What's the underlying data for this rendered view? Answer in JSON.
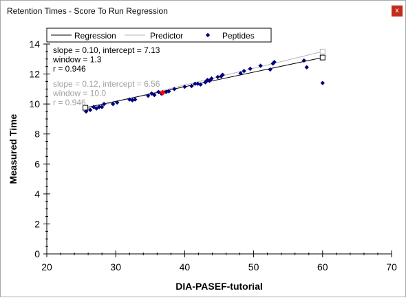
{
  "window": {
    "title": "Retention Times - Score To Run Regression",
    "close_glyph": "x"
  },
  "legend": {
    "items": [
      {
        "label": "Regression",
        "color": "#000000",
        "marker": "line"
      },
      {
        "label": "Predictor",
        "color": "#b4b4b4",
        "marker": "line"
      },
      {
        "label": "Peptides",
        "color": "#000080",
        "marker": "diamond"
      }
    ]
  },
  "stats": {
    "regression": [
      "slope = 0.10, intercept = 7.13",
      "window = 1.3",
      "r = 0.946"
    ],
    "predictor": [
      "slope = 0.12, intercept = 6.56",
      "window = 10.0",
      "r = 0.946"
    ]
  },
  "colors": {
    "regression": "#000000",
    "predictor": "#b4b4b4",
    "peptide": "#000080",
    "selected_peptide": "#ff0000",
    "stats_regression": "#000000",
    "stats_predictor": "#a0a0a0"
  },
  "chart_data": {
    "type": "scatter",
    "xlabel": "DIA-PASEF-tutorial",
    "ylabel": "Measured Time",
    "xlim": [
      20,
      70
    ],
    "ylim": [
      0,
      14
    ],
    "x_ticks": [
      20,
      30,
      40,
      50,
      60,
      70
    ],
    "y_ticks": [
      0,
      2,
      4,
      6,
      8,
      10,
      12,
      14
    ],
    "x_minor_step": 2,
    "y_minor_step": 0.5,
    "grid": false,
    "legend_position": "top",
    "regression_line": {
      "x": [
        25.6,
        60.0
      ],
      "y": [
        9.75,
        13.1
      ]
    },
    "predictor_line": {
      "x": [
        25.6,
        60.0
      ],
      "y": [
        9.65,
        13.5
      ]
    },
    "series": [
      {
        "name": "Peptides",
        "x": [
          25.7,
          26.3,
          26.8,
          27.2,
          27.6,
          28.0,
          28.3,
          29.6,
          30.2,
          32.0,
          32.4,
          32.8,
          34.7,
          35.2,
          35.6,
          36.2,
          36.6,
          37.3,
          37.7,
          38.5,
          40.0,
          41.0,
          41.5,
          41.9,
          42.3,
          43.0,
          43.3,
          43.6,
          43.9,
          44.8,
          45.3,
          45.5,
          48.1,
          48.6,
          49.5,
          51.0,
          52.4,
          52.8,
          53.0,
          57.3,
          57.7,
          60.0
        ],
        "y": [
          9.5,
          9.6,
          9.8,
          9.7,
          9.8,
          9.8,
          10.0,
          10.0,
          10.1,
          10.3,
          10.25,
          10.3,
          10.55,
          10.7,
          10.6,
          10.8,
          10.7,
          10.8,
          10.85,
          11.0,
          11.15,
          11.2,
          11.35,
          11.35,
          11.3,
          11.45,
          11.6,
          11.55,
          11.7,
          11.8,
          11.85,
          11.95,
          12.05,
          12.2,
          12.35,
          12.55,
          12.3,
          12.7,
          12.8,
          12.9,
          12.45,
          11.4
        ]
      },
      {
        "name": "",
        "x": [
          36.8
        ],
        "y": [
          10.75
        ]
      }
    ]
  }
}
